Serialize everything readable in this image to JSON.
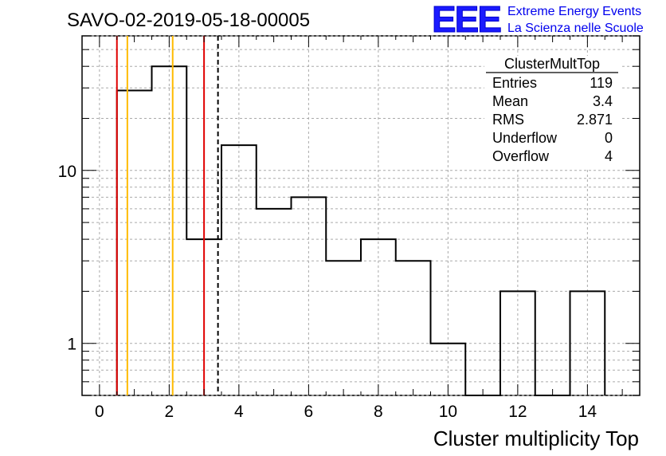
{
  "chart_data": {
    "type": "histogram",
    "title": "SAVO-02-2019-05-18-00005",
    "xlabel": "Cluster multiplicity Top",
    "ylabel": "",
    "xlim": [
      -0.5,
      15.5
    ],
    "ylim": [
      0.5,
      60
    ],
    "yscale": "log",
    "grid": true,
    "bin_edges": [
      0.5,
      1.5,
      2.5,
      3.5,
      4.5,
      5.5,
      6.5,
      7.5,
      8.5,
      9.5,
      10.5,
      11.5,
      12.5,
      13.5,
      14.5
    ],
    "values": [
      29,
      40,
      4,
      14,
      6,
      7,
      3,
      4,
      3,
      1,
      0,
      2,
      0,
      2
    ],
    "x_ticks": [
      "0",
      "2",
      "4",
      "6",
      "8",
      "10",
      "12",
      "14"
    ],
    "y_ticks": [
      "1",
      "10"
    ],
    "vertical_lines": [
      {
        "x": 0.5,
        "color": "#e00000",
        "style": "solid"
      },
      {
        "x": 0.8,
        "color": "#ffbb00",
        "style": "solid"
      },
      {
        "x": 2.1,
        "color": "#ffbb00",
        "style": "solid"
      },
      {
        "x": 3.0,
        "color": "#e00000",
        "style": "solid"
      },
      {
        "x": 3.4,
        "color": "#000000",
        "style": "dashed"
      }
    ]
  },
  "stats_box": {
    "title": "ClusterMultTop",
    "rows": [
      {
        "label": "Entries",
        "value": "119"
      },
      {
        "label": "Mean",
        "value": "3.4"
      },
      {
        "label": "RMS",
        "value": "2.871"
      },
      {
        "label": "Underflow",
        "value": "0"
      },
      {
        "label": "Overflow",
        "value": "4"
      }
    ]
  },
  "logo": {
    "mark": "EEE",
    "line1": "Extreme Energy Events",
    "line2": "La Scienza nelle Scuole",
    "color": "#0000ee"
  }
}
